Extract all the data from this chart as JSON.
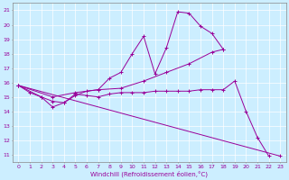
{
  "xlabel": "Windchill (Refroidissement éolien,°C)",
  "bg_color": "#cceeff",
  "line_color": "#990099",
  "xlim": [
    -0.5,
    23.5
  ],
  "ylim": [
    10.5,
    21.5
  ],
  "yticks": [
    11,
    12,
    13,
    14,
    15,
    16,
    17,
    18,
    19,
    20,
    21
  ],
  "xticks": [
    0,
    1,
    2,
    3,
    4,
    5,
    6,
    7,
    8,
    9,
    10,
    11,
    12,
    13,
    14,
    15,
    16,
    17,
    18,
    19,
    20,
    21,
    22,
    23
  ],
  "series": [
    {
      "x": [
        0,
        1,
        2,
        3,
        4,
        5,
        6,
        7,
        8,
        9,
        10,
        11,
        12,
        13,
        14,
        15,
        16,
        17,
        18,
        19,
        20,
        21,
        22
      ],
      "y": [
        15.8,
        15.3,
        15.0,
        14.3,
        14.6,
        15.2,
        15.1,
        15.0,
        15.2,
        15.3,
        15.3,
        15.3,
        15.4,
        15.4,
        15.4,
        15.4,
        15.5,
        15.5,
        15.5,
        16.1,
        14.0,
        12.2,
        10.9
      ]
    },
    {
      "x": [
        0,
        2,
        3,
        4,
        5,
        6,
        7,
        8,
        9,
        10,
        11,
        12,
        13,
        14,
        15,
        16,
        17,
        18
      ],
      "y": [
        15.8,
        15.0,
        14.7,
        14.6,
        15.1,
        15.4,
        15.5,
        16.3,
        16.7,
        18.0,
        19.2,
        16.6,
        18.4,
        20.9,
        20.8,
        19.9,
        19.4,
        18.3
      ]
    },
    {
      "x": [
        0,
        3,
        5,
        7,
        9,
        11,
        13,
        15,
        17,
        18
      ],
      "y": [
        15.8,
        15.0,
        15.3,
        15.5,
        15.6,
        16.1,
        16.7,
        17.3,
        18.1,
        18.3
      ]
    },
    {
      "x": [
        0,
        23
      ],
      "y": [
        15.8,
        10.9
      ]
    }
  ]
}
